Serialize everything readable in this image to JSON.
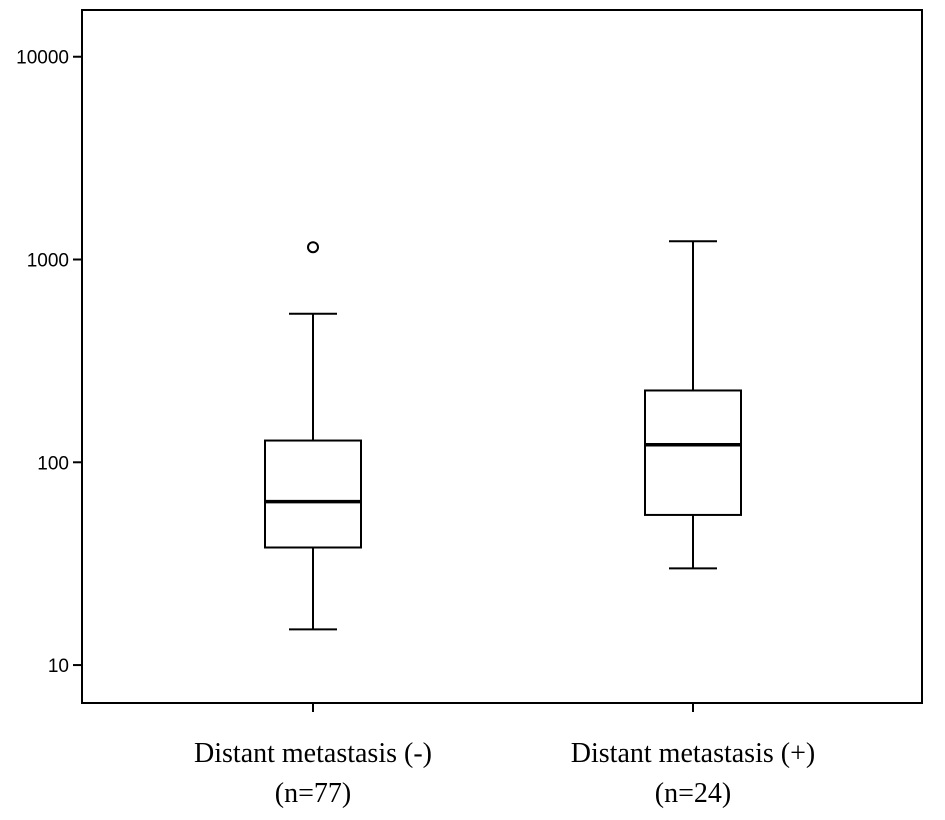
{
  "chart_data": {
    "type": "boxplot",
    "title": "",
    "xlabel": "",
    "ylabel": "",
    "y_scale": "log",
    "ylim": [
      6.5,
      17000
    ],
    "grid": false,
    "legend": "none",
    "yticks": [
      10,
      100,
      1000,
      10000
    ],
    "ytick_labels": [
      "10",
      "100",
      "1000",
      "10000"
    ],
    "categories": [
      {
        "label": "Distant metastasis (-)",
        "sublabel": "(n=77)"
      },
      {
        "label": "Distant metastasis (+)",
        "sublabel": "(n=24)"
      }
    ],
    "boxes": [
      {
        "whisker_low": 15,
        "q1": 38,
        "median": 64,
        "q3": 128,
        "whisker_high": 540,
        "outliers": [
          1150
        ]
      },
      {
        "whisker_low": 30,
        "q1": 55,
        "median": 122,
        "q3": 226,
        "whisker_high": 1230,
        "outliers": []
      }
    ]
  }
}
